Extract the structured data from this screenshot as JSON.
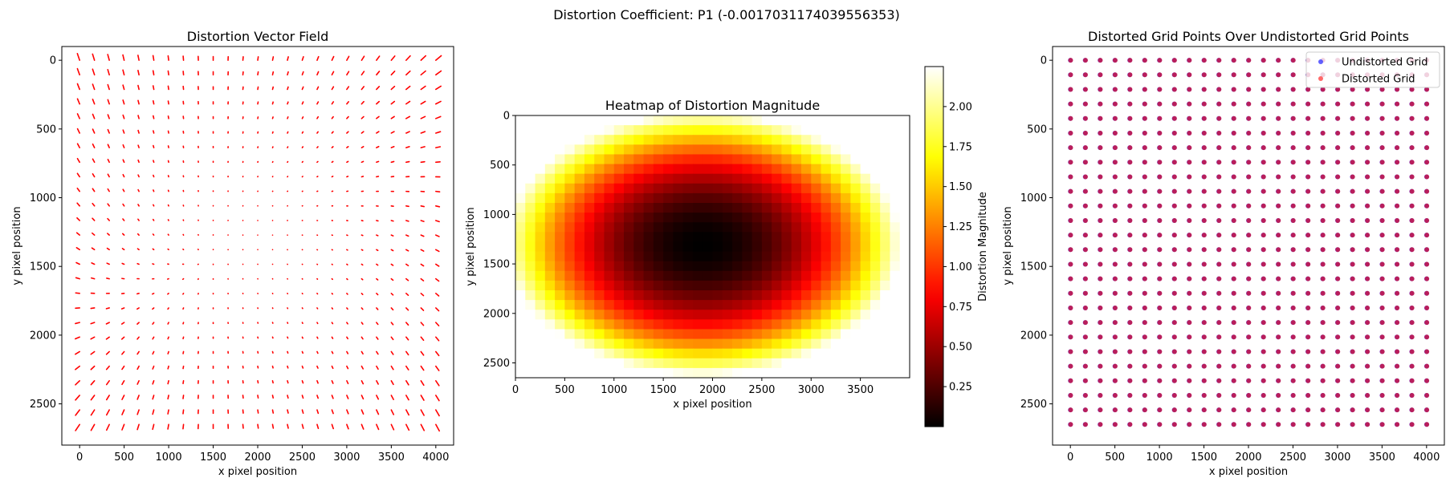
{
  "figure": {
    "suptitle": "Distortion Coefficient: P1 (-0.0017031174039556353)"
  },
  "chart_data": [
    {
      "type": "quiver",
      "title": "Distortion Vector Field",
      "xlabel": "x pixel position",
      "ylabel": "y pixel position",
      "xlim": [
        -200,
        4200
      ],
      "ylim": [
        2800,
        -100
      ],
      "y_inverted": true,
      "xticks": [
        0,
        500,
        1000,
        1500,
        2000,
        2500,
        3000,
        3500,
        4000
      ],
      "xtick_labels": [
        "0",
        "500",
        "1000",
        "1500",
        "2000",
        "2500",
        "3000",
        "3500",
        "4000"
      ],
      "yticks": [
        0,
        500,
        1000,
        1500,
        2000,
        2500
      ],
      "ytick_labels": [
        "0",
        "500",
        "1000",
        "1500",
        "2000",
        "2500"
      ],
      "grid_x": {
        "start": 0,
        "stop": 4000,
        "count": 25
      },
      "grid_y": {
        "start": 0,
        "stop": 2650,
        "count": 26
      },
      "center": [
        2000,
        1300
      ],
      "color": "#ff0000"
    },
    {
      "type": "heatmap",
      "title": "Heatmap of Distortion Magnitude",
      "xlabel": "x pixel position",
      "ylabel": "y pixel position",
      "xlim": [
        0,
        4000
      ],
      "ylim": [
        2650,
        0
      ],
      "y_inverted": true,
      "xticks": [
        0,
        500,
        1000,
        1500,
        2000,
        2500,
        3000,
        3500
      ],
      "xtick_labels": [
        "0",
        "500",
        "1000",
        "1500",
        "2000",
        "2500",
        "3000",
        "3500"
      ],
      "yticks": [
        0,
        500,
        1000,
        1500,
        2000,
        2500
      ],
      "ytick_labels": [
        "0",
        "500",
        "1000",
        "1500",
        "2000",
        "2500"
      ],
      "cells_x": 40,
      "cells_y": 27,
      "center": [
        1900,
        1300
      ],
      "colormap": "hot",
      "vmin": 0.0,
      "vmax": 2.25,
      "colorbar_label": "Distortion Magnitude",
      "colorbar_ticks": [
        0.25,
        0.5,
        0.75,
        1.0,
        1.25,
        1.5,
        1.75,
        2.0
      ],
      "colorbar_tick_labels": [
        "0.25",
        "0.50",
        "0.75",
        "1.00",
        "1.25",
        "1.50",
        "1.75",
        "2.00"
      ]
    },
    {
      "type": "scatter",
      "title": "Distorted Grid Points Over Undistorted Grid Points",
      "xlabel": "x pixel position",
      "ylabel": "y pixel position",
      "xlim": [
        -200,
        4200
      ],
      "ylim": [
        2800,
        -100
      ],
      "y_inverted": true,
      "xticks": [
        0,
        500,
        1000,
        1500,
        2000,
        2500,
        3000,
        3500,
        4000
      ],
      "xtick_labels": [
        "0",
        "500",
        "1000",
        "1500",
        "2000",
        "2500",
        "3000",
        "3500",
        "4000"
      ],
      "yticks": [
        0,
        500,
        1000,
        1500,
        2000,
        2500
      ],
      "ytick_labels": [
        "0",
        "500",
        "1000",
        "1500",
        "2000",
        "2500"
      ],
      "grid_x": {
        "start": 0,
        "stop": 4000,
        "count": 25
      },
      "grid_y": {
        "start": 0,
        "stop": 2650,
        "count": 26
      },
      "series": [
        {
          "name": "Undistorted Grid",
          "color": "#3b3bff"
        },
        {
          "name": "Distorted Grid",
          "color": "#ff4444"
        }
      ],
      "overlap_color": "#c0154a",
      "legend_position": "upper right"
    }
  ]
}
